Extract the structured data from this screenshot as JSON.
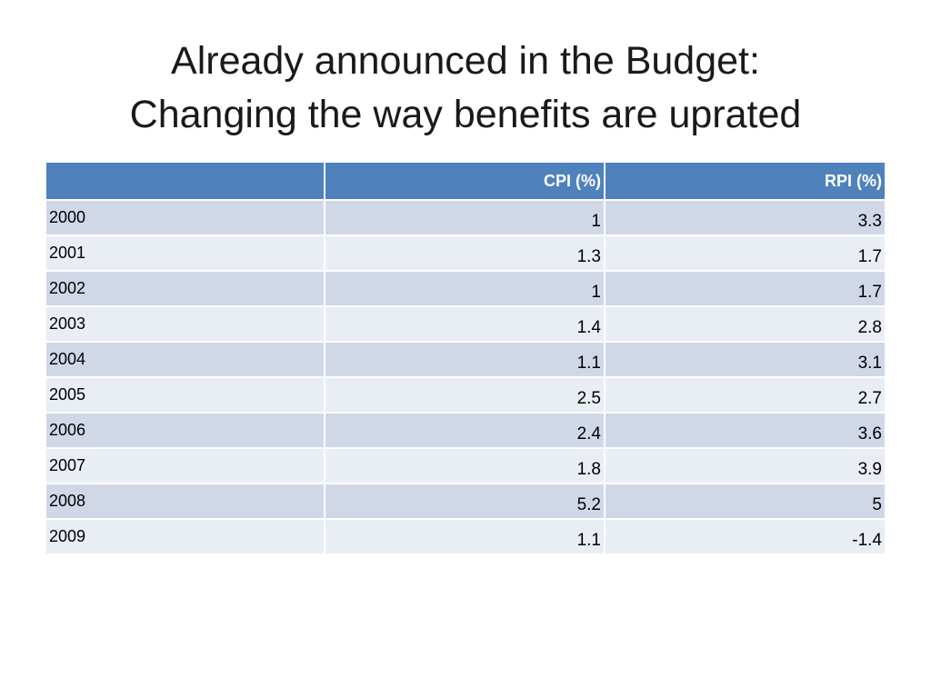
{
  "title": {
    "line1": "Already announced in the Budget:",
    "line2": "Changing the way benefits are uprated"
  },
  "table": {
    "headers": [
      "",
      "CPI (%)",
      "RPI (%)"
    ],
    "rows": [
      [
        "2000",
        "1",
        "3.3"
      ],
      [
        "2001",
        "1.3",
        "1.7"
      ],
      [
        "2002",
        "1",
        "1.7"
      ],
      [
        "2003",
        "1.4",
        "2.8"
      ],
      [
        "2004",
        "1.1",
        "3.1"
      ],
      [
        "2005",
        "2.5",
        "2.7"
      ],
      [
        "2006",
        "2.4",
        "3.6"
      ],
      [
        "2007",
        "1.8",
        "3.9"
      ],
      [
        "2008",
        "5.2",
        "5"
      ],
      [
        "2009",
        "1.1",
        "-1.4"
      ]
    ]
  },
  "colors": {
    "header_bg": "#4f81bd",
    "row_band_dark": "#d0d8e8",
    "row_band_light": "#e9edf4"
  }
}
